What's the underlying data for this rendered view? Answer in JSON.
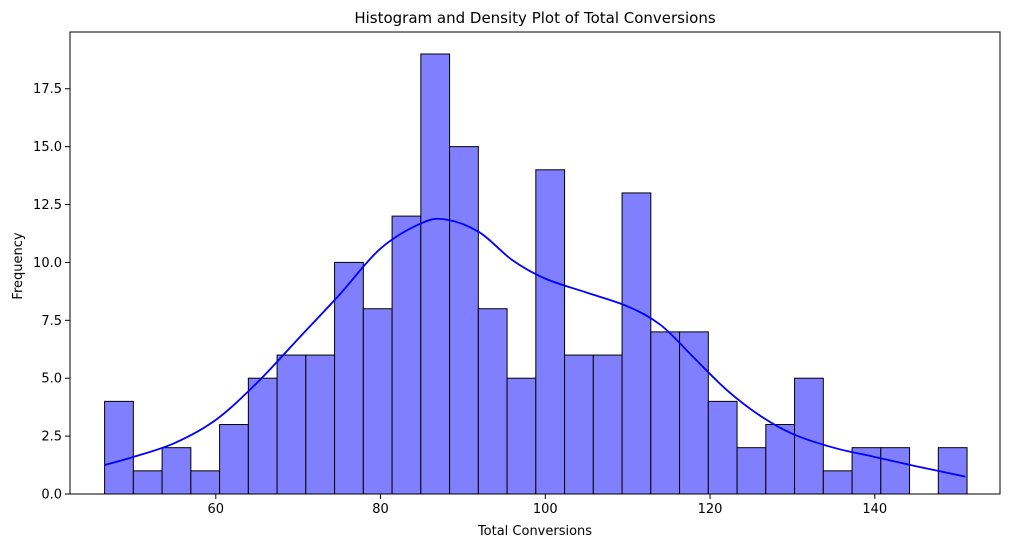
{
  "chart_data": {
    "type": "bar",
    "title": "Histogram and Density Plot of Total Conversions",
    "xlabel": "Total Conversions",
    "ylabel": "Frequency",
    "xlim": [
      42.3,
      155.2
    ],
    "ylim": [
      0,
      19.95
    ],
    "xticks": [
      60,
      80,
      100,
      120,
      140
    ],
    "yticks": [
      0.0,
      2.5,
      5.0,
      7.5,
      10.0,
      12.5,
      15.0,
      17.5
    ],
    "ytick_labels": [
      "0.0",
      "2.5",
      "5.0",
      "7.5",
      "10.0",
      "12.5",
      "15.0",
      "17.5"
    ],
    "bin_start": 46.5,
    "bin_width": 3.49,
    "counts": [
      4,
      1,
      2,
      1,
      3,
      5,
      6,
      6,
      10,
      8,
      12,
      19,
      15,
      8,
      5,
      14,
      6,
      6,
      13,
      7,
      7,
      4,
      2,
      3,
      5,
      1,
      2,
      2,
      0,
      2
    ],
    "bar_color": "#8080ff",
    "edge_color": "#000000",
    "density_color": "#0000ff",
    "density_curve": {
      "x": [
        46.5,
        50,
        55,
        60,
        65,
        70,
        75,
        80,
        85,
        88,
        92,
        96,
        100,
        105,
        110,
        114,
        118,
        122,
        126,
        130,
        135,
        140,
        145,
        151
      ],
      "y": [
        1.25,
        1.6,
        2.2,
        3.2,
        4.8,
        6.7,
        8.6,
        10.6,
        11.7,
        11.85,
        11.3,
        10.1,
        9.3,
        8.7,
        8.1,
        7.3,
        5.9,
        4.5,
        3.4,
        2.6,
        2.0,
        1.6,
        1.2,
        0.75
      ]
    },
    "grid": false,
    "legend": "none"
  }
}
